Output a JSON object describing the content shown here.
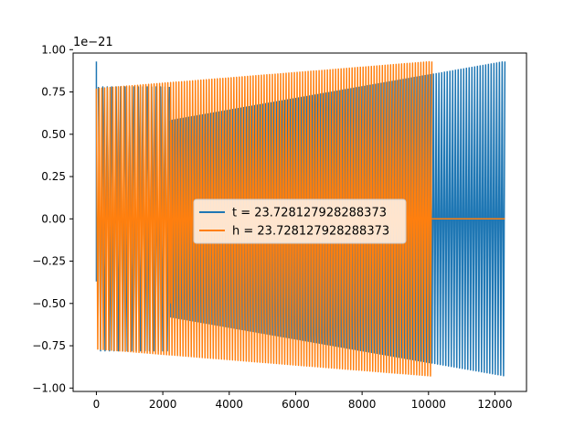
{
  "chart_data": {
    "type": "line",
    "title": "",
    "xlabel": "",
    "ylabel": "",
    "y_offset_label": "1e−21",
    "xlim": [
      -700,
      12950
    ],
    "ylim": [
      -1.02,
      0.98
    ],
    "grid": false,
    "legend_position": "center",
    "x_ticks": [
      0,
      2000,
      4000,
      6000,
      8000,
      10000,
      12000
    ],
    "x_tick_labels": [
      "0",
      "2000",
      "4000",
      "6000",
      "8000",
      "10000",
      "12000"
    ],
    "y_ticks": [
      -1.0,
      -0.75,
      -0.5,
      -0.25,
      0.0,
      0.25,
      0.5,
      0.75,
      1.0
    ],
    "y_tick_labels": [
      "−1.00",
      "−0.75",
      "−0.50",
      "−0.25",
      "0.00",
      "0.25",
      "0.50",
      "0.75",
      "1.00"
    ],
    "series": [
      {
        "name": "t = 23.728127928288373",
        "color": "#1f77b4",
        "segments": [
          {
            "kind": "spike",
            "x": 0,
            "min": -0.37,
            "max": 0.93
          },
          {
            "kind": "oscillation",
            "x_start": 60,
            "x_end": 2200,
            "amp_start": 0.78,
            "amp_end": 0.78,
            "cycles": 16
          },
          {
            "kind": "oscillation",
            "x_start": 2200,
            "x_end": 12300,
            "amp_start": 0.58,
            "amp_end": 0.93,
            "cycles": 122
          }
        ]
      },
      {
        "name": "h = 23.728127928288373",
        "color": "#ff7f0e",
        "segments": [
          {
            "kind": "oscillation",
            "x_start": 0,
            "x_end": 10100,
            "amp_start": 0.77,
            "amp_end": 0.93,
            "cycles": 122
          },
          {
            "kind": "spike",
            "x": 2250,
            "min": -0.5,
            "max": 0.57
          },
          {
            "kind": "flat",
            "x_start": 10100,
            "x_end": 12300,
            "value": 0.0
          }
        ]
      }
    ]
  }
}
